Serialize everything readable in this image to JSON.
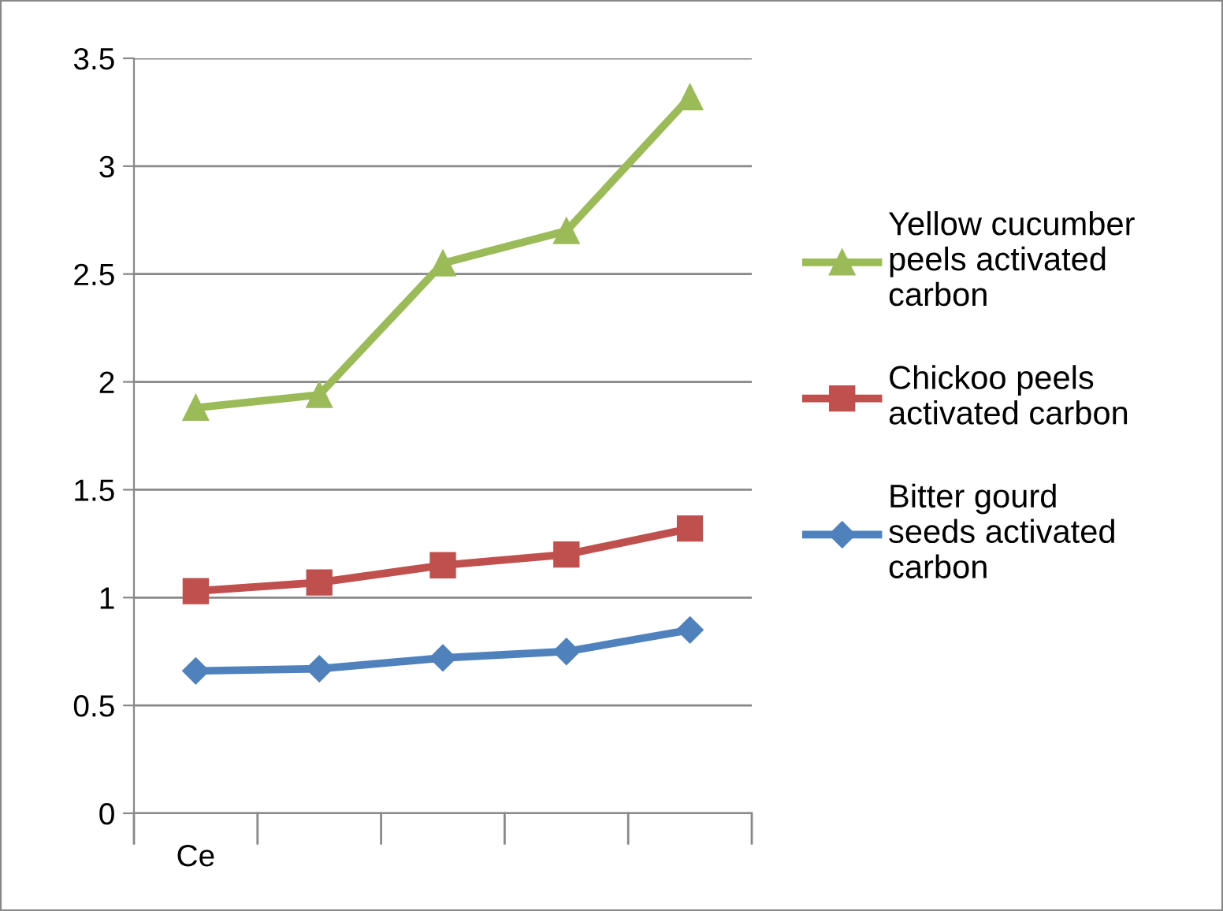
{
  "chart_data": {
    "type": "line",
    "categories": [
      "Ce",
      null,
      null,
      null,
      null
    ],
    "series": [
      {
        "name": "Yellow cucumber peels activated carbon",
        "color": "#9bbb59",
        "marker": "triangle",
        "values": [
          1.88,
          1.94,
          2.55,
          2.7,
          3.32
        ]
      },
      {
        "name": "Chickoo peels activated carbon",
        "color": "#c0504d",
        "marker": "square",
        "values": [
          1.03,
          1.07,
          1.15,
          1.2,
          1.32
        ]
      },
      {
        "name": "Bitter gourd seeds activated carbon",
        "color": "#4f81bd",
        "marker": "diamond",
        "values": [
          0.66,
          0.67,
          0.72,
          0.75,
          0.85
        ]
      }
    ],
    "ylim": [
      0,
      3.5
    ],
    "yticks": [
      0,
      0.5,
      1,
      1.5,
      2,
      2.5,
      3,
      3.5
    ],
    "grid": "y",
    "legend": "right",
    "line_style": "solid"
  }
}
